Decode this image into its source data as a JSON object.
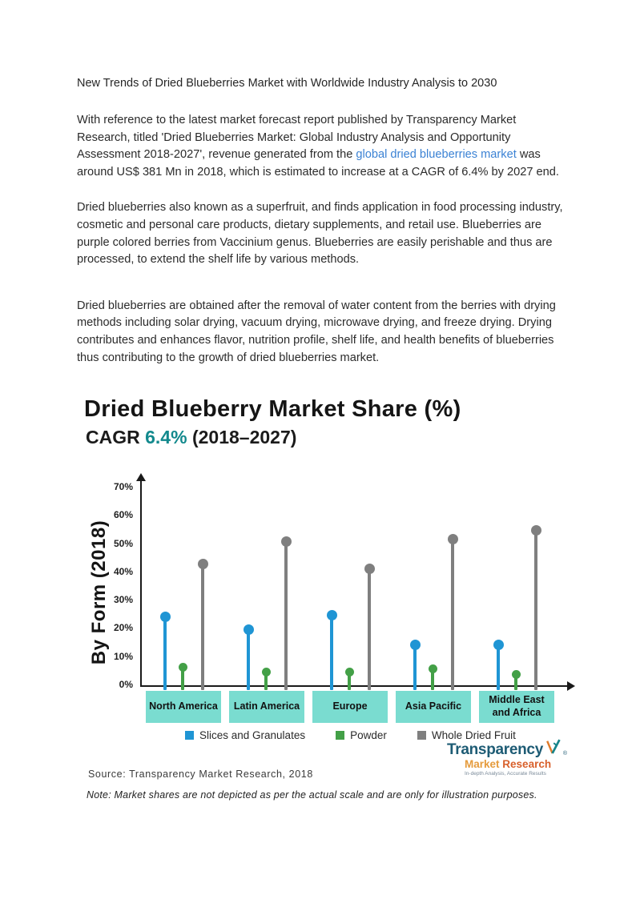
{
  "page": {
    "heading": "New Trends of Dried Blueberries Market with Worldwide Industry Analysis to 2030",
    "paragraph1": {
      "before": "With reference to the latest market forecast report published by Transparency Market Research, titled 'Dried Blueberries Market: Global Industry Analysis and Opportunity Assessment 2018-2027', revenue generated from the ",
      "link": "global dried blueberries market",
      "after": " was around US$ 381 Mn in 2018, which is estimated to increase at a CAGR of 6.4% by 2027 end."
    },
    "paragraph2": "Dried blueberries also known as a superfruit, and finds application in food processing industry, cosmetic and personal care products, dietary supplements, and retail use. Blueberries are purple colored berries from Vaccinium genus. Blueberries are easily perishable and thus are processed, to extend the shelf life by various methods.",
    "paragraph3": "Dried blueberries are obtained after the removal of water content from the berries with drying methods including solar drying, vacuum drying, microwave drying, and freeze drying. Drying contributes and enhances flavor, nutrition profile, shelf life, and health benefits of blueberries thus contributing to the growth of dried blueberries market."
  },
  "chart": {
    "title": "Dried Blueberry Market Share (%)",
    "cagr_prefix": "CAGR ",
    "cagr_value": "6.4%",
    "cagr_suffix": " (2018–2027)",
    "source": "Source: Transparency Market Research, 2018",
    "note": "Note: Market shares are not depicted as per the actual scale and are only for illustration purposes."
  },
  "chart_data": {
    "type": "bar",
    "variant": "lollipop",
    "title": "Dried Blueberry Market Share (%)",
    "subtitle": "CAGR 6.4% (2018–2027)",
    "ylabel": "By Form (2018)",
    "xlabel": "",
    "ylim": [
      0,
      70
    ],
    "ytick_step": 10,
    "yticks": [
      "0%",
      "10%",
      "20%",
      "30%",
      "40%",
      "50%",
      "60%",
      "70%"
    ],
    "grid": false,
    "legend_position": "bottom",
    "categories": [
      "North America",
      "Latin America",
      "Europe",
      "Asia Pacific",
      "Middle East and Africa"
    ],
    "series": [
      {
        "name": "Slices and Granulates",
        "color": "#1f95d4",
        "values": [
          26,
          21.5,
          26.5,
          16,
          16
        ]
      },
      {
        "name": "Powder",
        "color": "#43a047",
        "values": [
          8,
          6.5,
          6.5,
          7.5,
          5.5
        ]
      },
      {
        "name": "Whole Dried Fruit",
        "color": "#7f7f7f",
        "values": [
          44.5,
          52.5,
          43,
          53.5,
          56.5
        ]
      }
    ],
    "category_band_color": "#7adcd0"
  },
  "logo": {
    "line1": "Transparency",
    "line2a": "Market",
    "line2b": "Research",
    "tagline": "In-depth Analysis, Accurate Results",
    "registered": "®"
  },
  "colors": {
    "link_blue": "#3b82d4",
    "cagr_teal": "#12898d",
    "axis_black": "#1a1a1a",
    "band_teal": "#7adcd0",
    "logo_navy": "#1d5b74",
    "logo_orange": "#e59b3c",
    "logo_orange_dark": "#d8602b"
  }
}
